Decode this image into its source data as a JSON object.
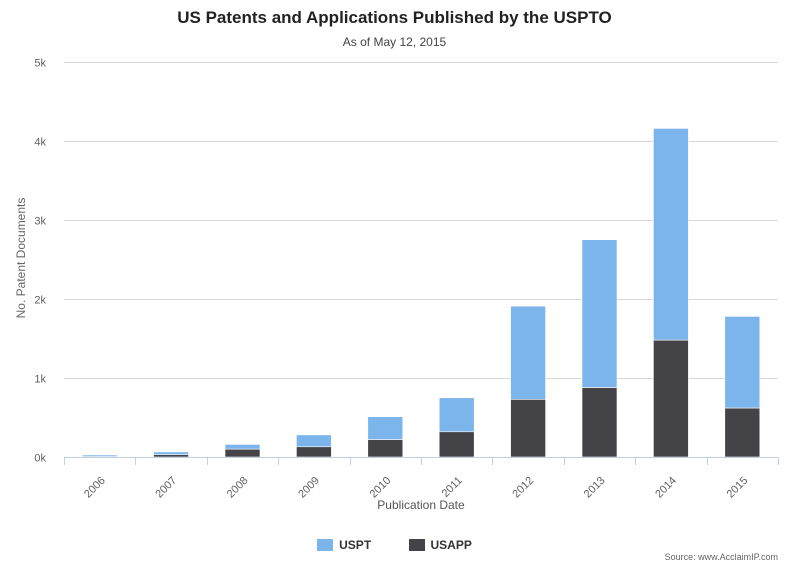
{
  "chart_data": {
    "type": "bar",
    "stacked": true,
    "title": "US Patents and Applications Published by the USPTO",
    "subtitle": "As of May 12, 2015",
    "xlabel": "Publication Date",
    "ylabel": "No. Patent Documents",
    "categories": [
      "2006",
      "2007",
      "2008",
      "2009",
      "2010",
      "2011",
      "2012",
      "2013",
      "2014",
      "2015"
    ],
    "series": [
      {
        "name": "USAPP",
        "color": "#434348",
        "values": [
          5,
          30,
          100,
          130,
          220,
          320,
          730,
          880,
          1480,
          620
        ]
      },
      {
        "name": "USPT",
        "color": "#7cb5ec",
        "values": [
          20,
          35,
          60,
          150,
          290,
          430,
          1180,
          1870,
          2680,
          1160
        ]
      }
    ],
    "ylim": [
      0,
      5000
    ],
    "yticks": [
      0,
      1000,
      2000,
      3000,
      4000,
      5000
    ],
    "ytick_labels": [
      "0k",
      "1k",
      "2k",
      "3k",
      "4k",
      "5k"
    ],
    "grid": true,
    "legend_position": "bottom-center",
    "source": "Source: www.AcclaimIP.com"
  }
}
